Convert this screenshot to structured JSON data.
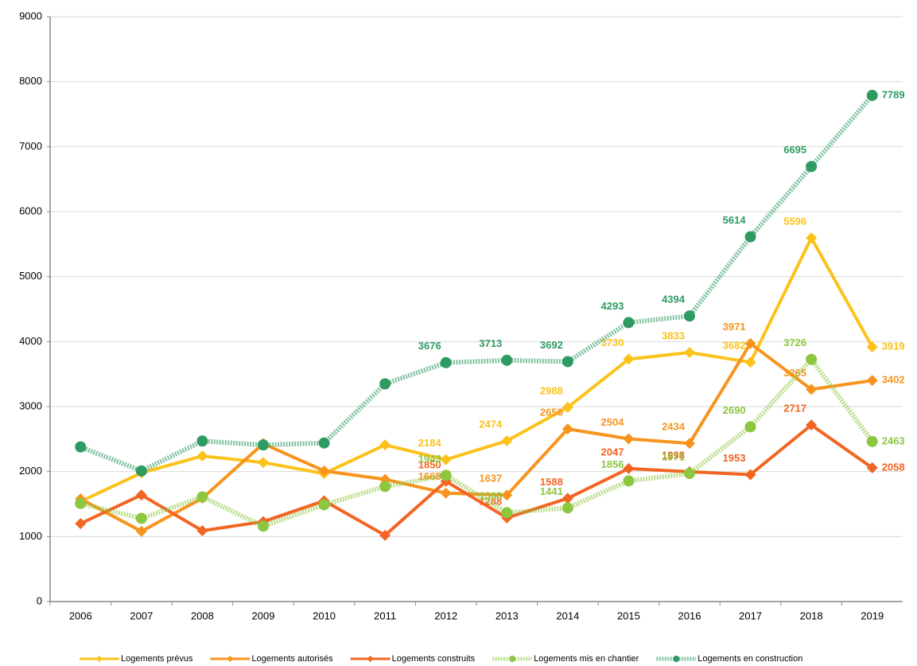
{
  "chart_data": {
    "type": "line",
    "categories": [
      "2006",
      "2007",
      "2008",
      "2009",
      "2010",
      "2011",
      "2012",
      "2013",
      "2014",
      "2015",
      "2016",
      "2017",
      "2018",
      "2019"
    ],
    "ylim": [
      0,
      9000
    ],
    "yticks": [
      0,
      1000,
      2000,
      3000,
      4000,
      5000,
      6000,
      7000,
      8000,
      9000
    ],
    "grid": true,
    "legend": "bottom",
    "series": [
      {
        "name": "Logements prévus",
        "color": "#fcc21b",
        "marker": "diamond",
        "line_style": "solid",
        "values": [
          1540,
          1980,
          2240,
          2140,
          1970,
          2410,
          2184,
          2474,
          2988,
          3730,
          3833,
          3682,
          5596,
          3919
        ],
        "value_labels": [
          null,
          null,
          null,
          null,
          null,
          null,
          "2184",
          "2474",
          "2988",
          "3730",
          "3833",
          "3682",
          "5596",
          "3919"
        ]
      },
      {
        "name": "Logements autorisés",
        "color": "#f7941d",
        "marker": "diamond",
        "line_style": "solid",
        "values": [
          1580,
          1080,
          1590,
          2430,
          2010,
          1880,
          1668,
          1637,
          2656,
          2504,
          2434,
          3971,
          3265,
          3402
        ],
        "value_labels": [
          null,
          null,
          null,
          null,
          null,
          null,
          "1668",
          "1637",
          "2656",
          "2504",
          "2434",
          "3971",
          "3265",
          "3402"
        ]
      },
      {
        "name": "Logements construits",
        "color": "#f26522",
        "marker": "diamond",
        "line_style": "solid",
        "values": [
          1200,
          1640,
          1090,
          1230,
          1550,
          1020,
          1850,
          1288,
          1588,
          2047,
          1998,
          1953,
          2717,
          2058
        ],
        "value_labels": [
          null,
          null,
          null,
          null,
          null,
          null,
          "1850",
          "1288",
          "1588",
          "2047",
          "1998",
          "1953",
          "2717",
          "2058"
        ]
      },
      {
        "name": "Logements mis en chantier",
        "color": "#8dc63f",
        "marker": "circle",
        "line_style": "hatched",
        "values": [
          1510,
          1280,
          1610,
          1160,
          1490,
          1770,
          1943,
          1368,
          1441,
          1856,
          1971,
          2690,
          3726,
          2463
        ],
        "value_labels": [
          null,
          null,
          null,
          null,
          null,
          null,
          "1943",
          "1368",
          "1441",
          "1856",
          "1971",
          "2690",
          "3726",
          "2463"
        ]
      },
      {
        "name": "Logements en construction",
        "color": "#2e9b62",
        "marker": "circle",
        "line_style": "hatched",
        "values": [
          2380,
          2010,
          2470,
          2410,
          2440,
          3350,
          3676,
          3713,
          3692,
          4293,
          4394,
          5614,
          6695,
          7789
        ],
        "value_labels": [
          null,
          null,
          null,
          null,
          null,
          null,
          "3676",
          "3713",
          "3692",
          "4293",
          "4394",
          "5614",
          "6695",
          "7789"
        ]
      }
    ]
  }
}
